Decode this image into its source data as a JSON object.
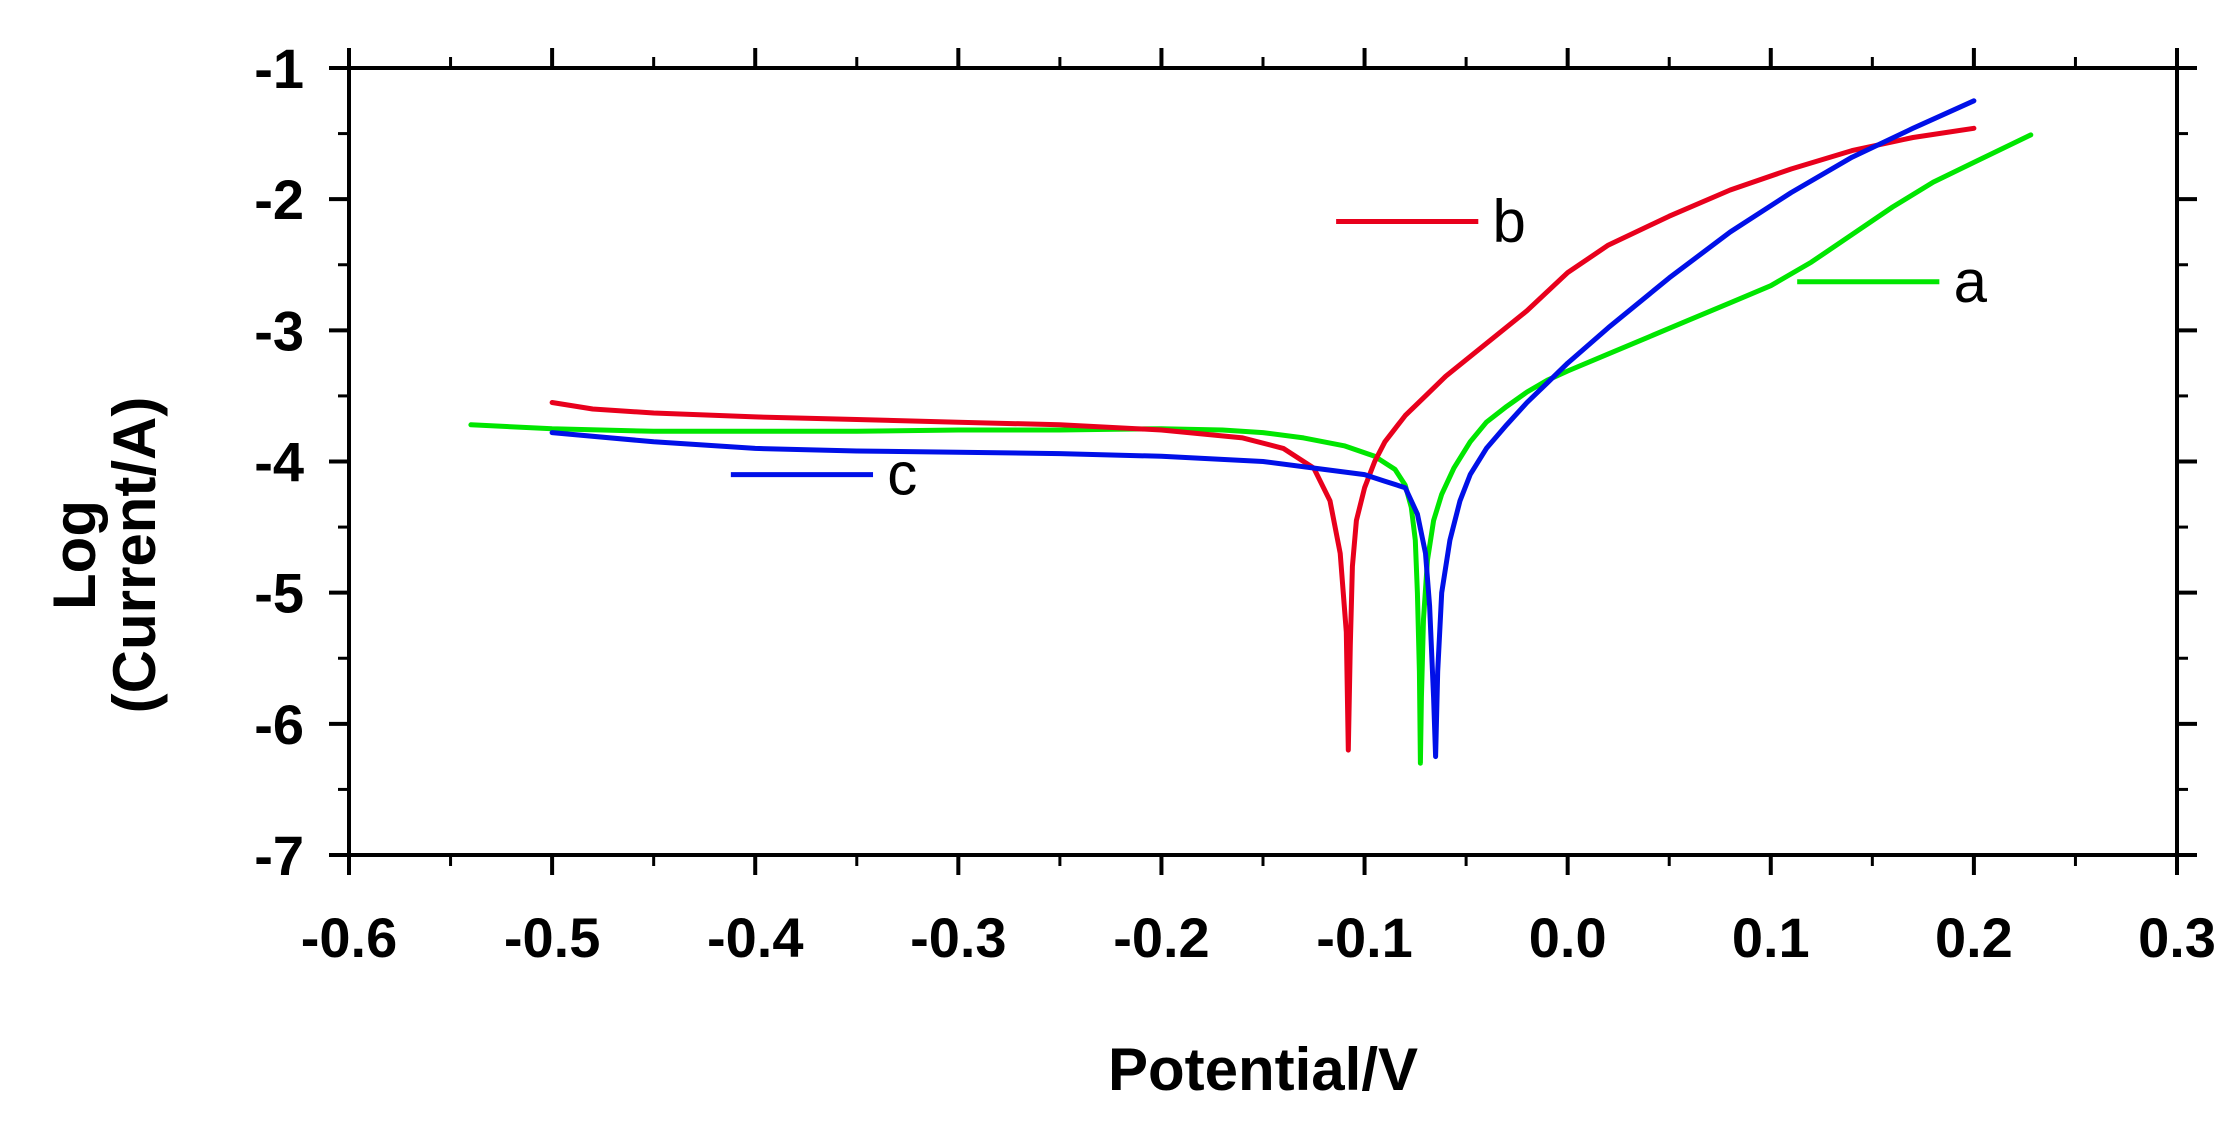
{
  "chart_data": {
    "type": "line",
    "title": "",
    "xlabel": "Potential/V",
    "ylabel_lines": [
      "Log",
      "(Current/A)"
    ],
    "xlim": [
      -0.6,
      0.3
    ],
    "ylim": [
      -7,
      -1
    ],
    "x_ticks": [
      -0.6,
      -0.5,
      -0.4,
      -0.3,
      -0.2,
      -0.1,
      0.0,
      0.1,
      0.2,
      0.3
    ],
    "x_tick_labels": [
      "-0.6",
      "-0.5",
      "-0.4",
      "-0.3",
      "-0.2",
      "-0.1",
      "0.0",
      "0.1",
      "0.2",
      "0.3"
    ],
    "y_ticks": [
      -1,
      -2,
      -3,
      -4,
      -5,
      -6,
      -7
    ],
    "y_tick_labels": [
      "-1",
      "-2",
      "-3",
      "-4",
      "-5",
      "-6",
      "-7"
    ],
    "grid": false,
    "series": [
      {
        "name": "a",
        "color": "#00e600",
        "legend_line": [
          [
            0.113,
            -2.63
          ],
          [
            0.183,
            -2.63
          ]
        ],
        "legend_text_at": [
          0.19,
          -2.63
        ],
        "x": [
          -0.54,
          -0.5,
          -0.45,
          -0.4,
          -0.35,
          -0.3,
          -0.25,
          -0.2,
          -0.17,
          -0.15,
          -0.13,
          -0.11,
          -0.095,
          -0.085,
          -0.08,
          -0.077,
          -0.075,
          -0.074,
          -0.073,
          -0.0725,
          -0.072,
          -0.071,
          -0.069,
          -0.066,
          -0.062,
          -0.056,
          -0.048,
          -0.04,
          -0.03,
          -0.02,
          -0.01,
          0.0,
          0.02,
          0.04,
          0.06,
          0.08,
          0.1,
          0.12,
          0.14,
          0.16,
          0.18,
          0.2,
          0.228
        ],
        "y": [
          -3.72,
          -3.75,
          -3.77,
          -3.77,
          -3.77,
          -3.76,
          -3.76,
          -3.75,
          -3.76,
          -3.78,
          -3.82,
          -3.88,
          -3.96,
          -4.06,
          -4.18,
          -4.35,
          -4.6,
          -5.0,
          -5.6,
          -6.3,
          -5.8,
          -5.2,
          -4.75,
          -4.45,
          -4.25,
          -4.05,
          -3.85,
          -3.7,
          -3.58,
          -3.47,
          -3.38,
          -3.31,
          -3.18,
          -3.05,
          -2.92,
          -2.79,
          -2.66,
          -2.48,
          -2.27,
          -2.06,
          -1.87,
          -1.72,
          -1.51
        ]
      },
      {
        "name": "b",
        "color": "#e8001c",
        "legend_line": [
          [
            -0.114,
            -2.17
          ],
          [
            -0.044,
            -2.17
          ]
        ],
        "legend_text_at": [
          -0.037,
          -2.17
        ],
        "x": [
          -0.5,
          -0.48,
          -0.45,
          -0.4,
          -0.35,
          -0.3,
          -0.25,
          -0.2,
          -0.16,
          -0.14,
          -0.125,
          -0.117,
          -0.112,
          -0.109,
          -0.108,
          -0.107,
          -0.106,
          -0.104,
          -0.1,
          -0.095,
          -0.09,
          -0.08,
          -0.07,
          -0.06,
          -0.04,
          -0.02,
          0.0,
          0.02,
          0.05,
          0.08,
          0.11,
          0.14,
          0.17,
          0.2
        ],
        "y": [
          -3.55,
          -3.6,
          -3.63,
          -3.66,
          -3.68,
          -3.7,
          -3.72,
          -3.76,
          -3.82,
          -3.9,
          -4.05,
          -4.3,
          -4.7,
          -5.3,
          -6.2,
          -5.4,
          -4.8,
          -4.45,
          -4.2,
          -4.0,
          -3.85,
          -3.65,
          -3.5,
          -3.35,
          -3.1,
          -2.85,
          -2.56,
          -2.35,
          -2.13,
          -1.93,
          -1.77,
          -1.63,
          -1.53,
          -1.46
        ]
      },
      {
        "name": "c",
        "color": "#0010e8",
        "legend_line": [
          [
            -0.412,
            -4.1
          ],
          [
            -0.342,
            -4.1
          ]
        ],
        "legend_text_at": [
          -0.335,
          -4.1
        ],
        "x": [
          -0.5,
          -0.45,
          -0.4,
          -0.35,
          -0.3,
          -0.25,
          -0.2,
          -0.15,
          -0.12,
          -0.1,
          -0.09,
          -0.08,
          -0.074,
          -0.07,
          -0.068,
          -0.066,
          -0.065,
          -0.064,
          -0.062,
          -0.058,
          -0.053,
          -0.048,
          -0.04,
          -0.03,
          -0.02,
          -0.01,
          0.0,
          0.02,
          0.05,
          0.08,
          0.11,
          0.14,
          0.17,
          0.2
        ],
        "y": [
          -3.78,
          -3.85,
          -3.9,
          -3.92,
          -3.93,
          -3.94,
          -3.96,
          -4.0,
          -4.06,
          -4.1,
          -4.15,
          -4.2,
          -4.4,
          -4.7,
          -5.1,
          -5.8,
          -6.25,
          -5.6,
          -5.0,
          -4.6,
          -4.3,
          -4.1,
          -3.9,
          -3.72,
          -3.55,
          -3.4,
          -3.25,
          -2.98,
          -2.6,
          -2.25,
          -1.95,
          -1.68,
          -1.46,
          -1.25
        ]
      }
    ]
  }
}
